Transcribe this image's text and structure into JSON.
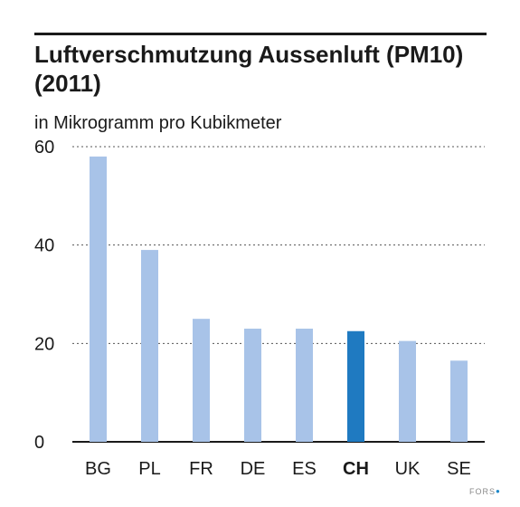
{
  "header": {
    "title": "Luftverschmutzung Aussenluft (PM10) (2011)",
    "subtitle": "in Mikrogramm pro Kubikmeter"
  },
  "chart_data": {
    "type": "bar",
    "title": "Luftverschmutzung Aussenluft (PM10) (2011)",
    "ylabel": "in Mikrogramm pro Kubikmeter",
    "categories": [
      "BG",
      "PL",
      "FR",
      "DE",
      "ES",
      "CH",
      "UK",
      "SE"
    ],
    "values": [
      58,
      39,
      25,
      23,
      23,
      22.5,
      20.5,
      16.5
    ],
    "highlight": "CH",
    "ylim": [
      0,
      60
    ],
    "yticks": [
      0,
      20,
      40,
      60
    ],
    "grid": true,
    "colors": {
      "bar": "#a8c3e8",
      "highlight": "#1f7ac1",
      "grid": "#555555",
      "axis": "#1a1a1a"
    }
  },
  "footer": {
    "watermark": "FORS"
  }
}
